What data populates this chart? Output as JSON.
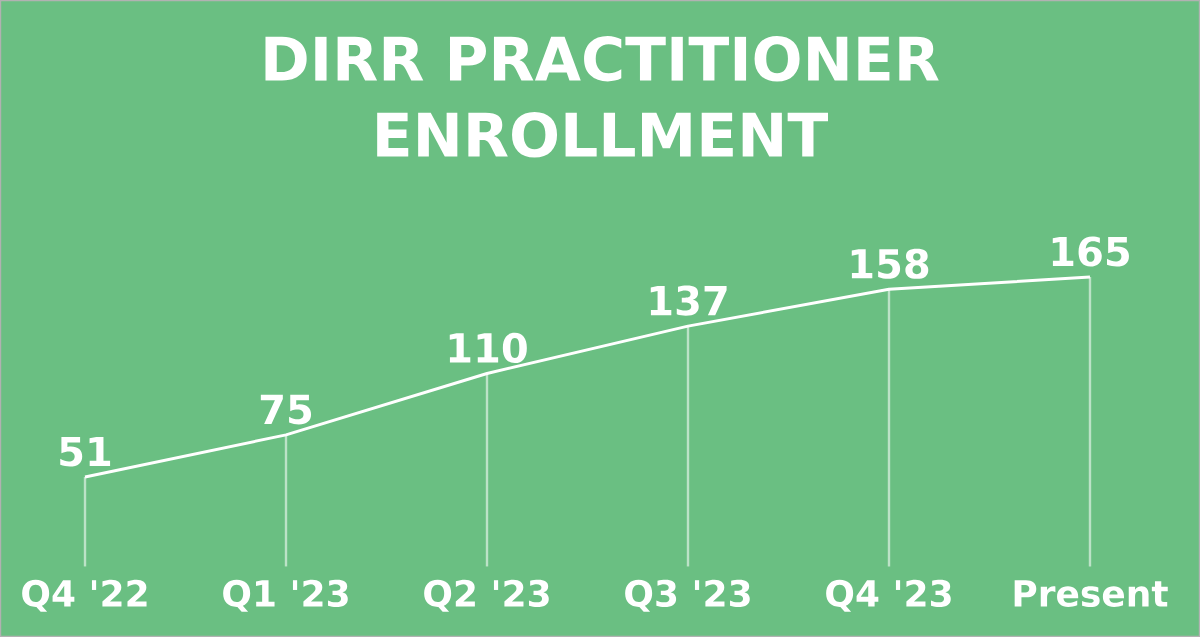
{
  "chart_data": {
    "type": "line",
    "title": "DIRR PRACTITIONER ENROLLMENT",
    "categories": [
      "Q4 '22",
      "Q1 '23",
      "Q2 '23",
      "Q3 '23",
      "Q4 '23",
      "Present"
    ],
    "values": [
      51,
      75,
      110,
      137,
      158,
      165
    ],
    "color": "#ffffff",
    "data_labels": true,
    "marker": "none",
    "line_style": "solid",
    "grid": "x"
  }
}
